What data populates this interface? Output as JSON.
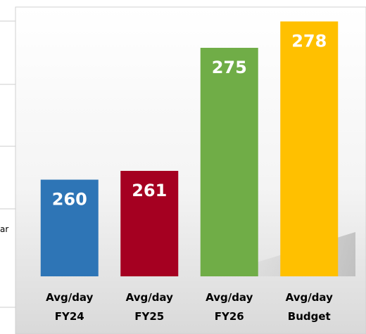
{
  "background_fragment": "ar",
  "chart_data": {
    "type": "bar",
    "categories": [
      [
        "Avg/day",
        "FY24"
      ],
      [
        "Avg/day",
        "FY25"
      ],
      [
        "Avg/day",
        "FY26"
      ],
      [
        "Avg/day",
        "Budget"
      ]
    ],
    "values": [
      260,
      261,
      275,
      278
    ],
    "colors": [
      "#2e75b6",
      "#a50021",
      "#70ad47",
      "#ffc000"
    ],
    "ylim": [
      249,
      279
    ]
  }
}
